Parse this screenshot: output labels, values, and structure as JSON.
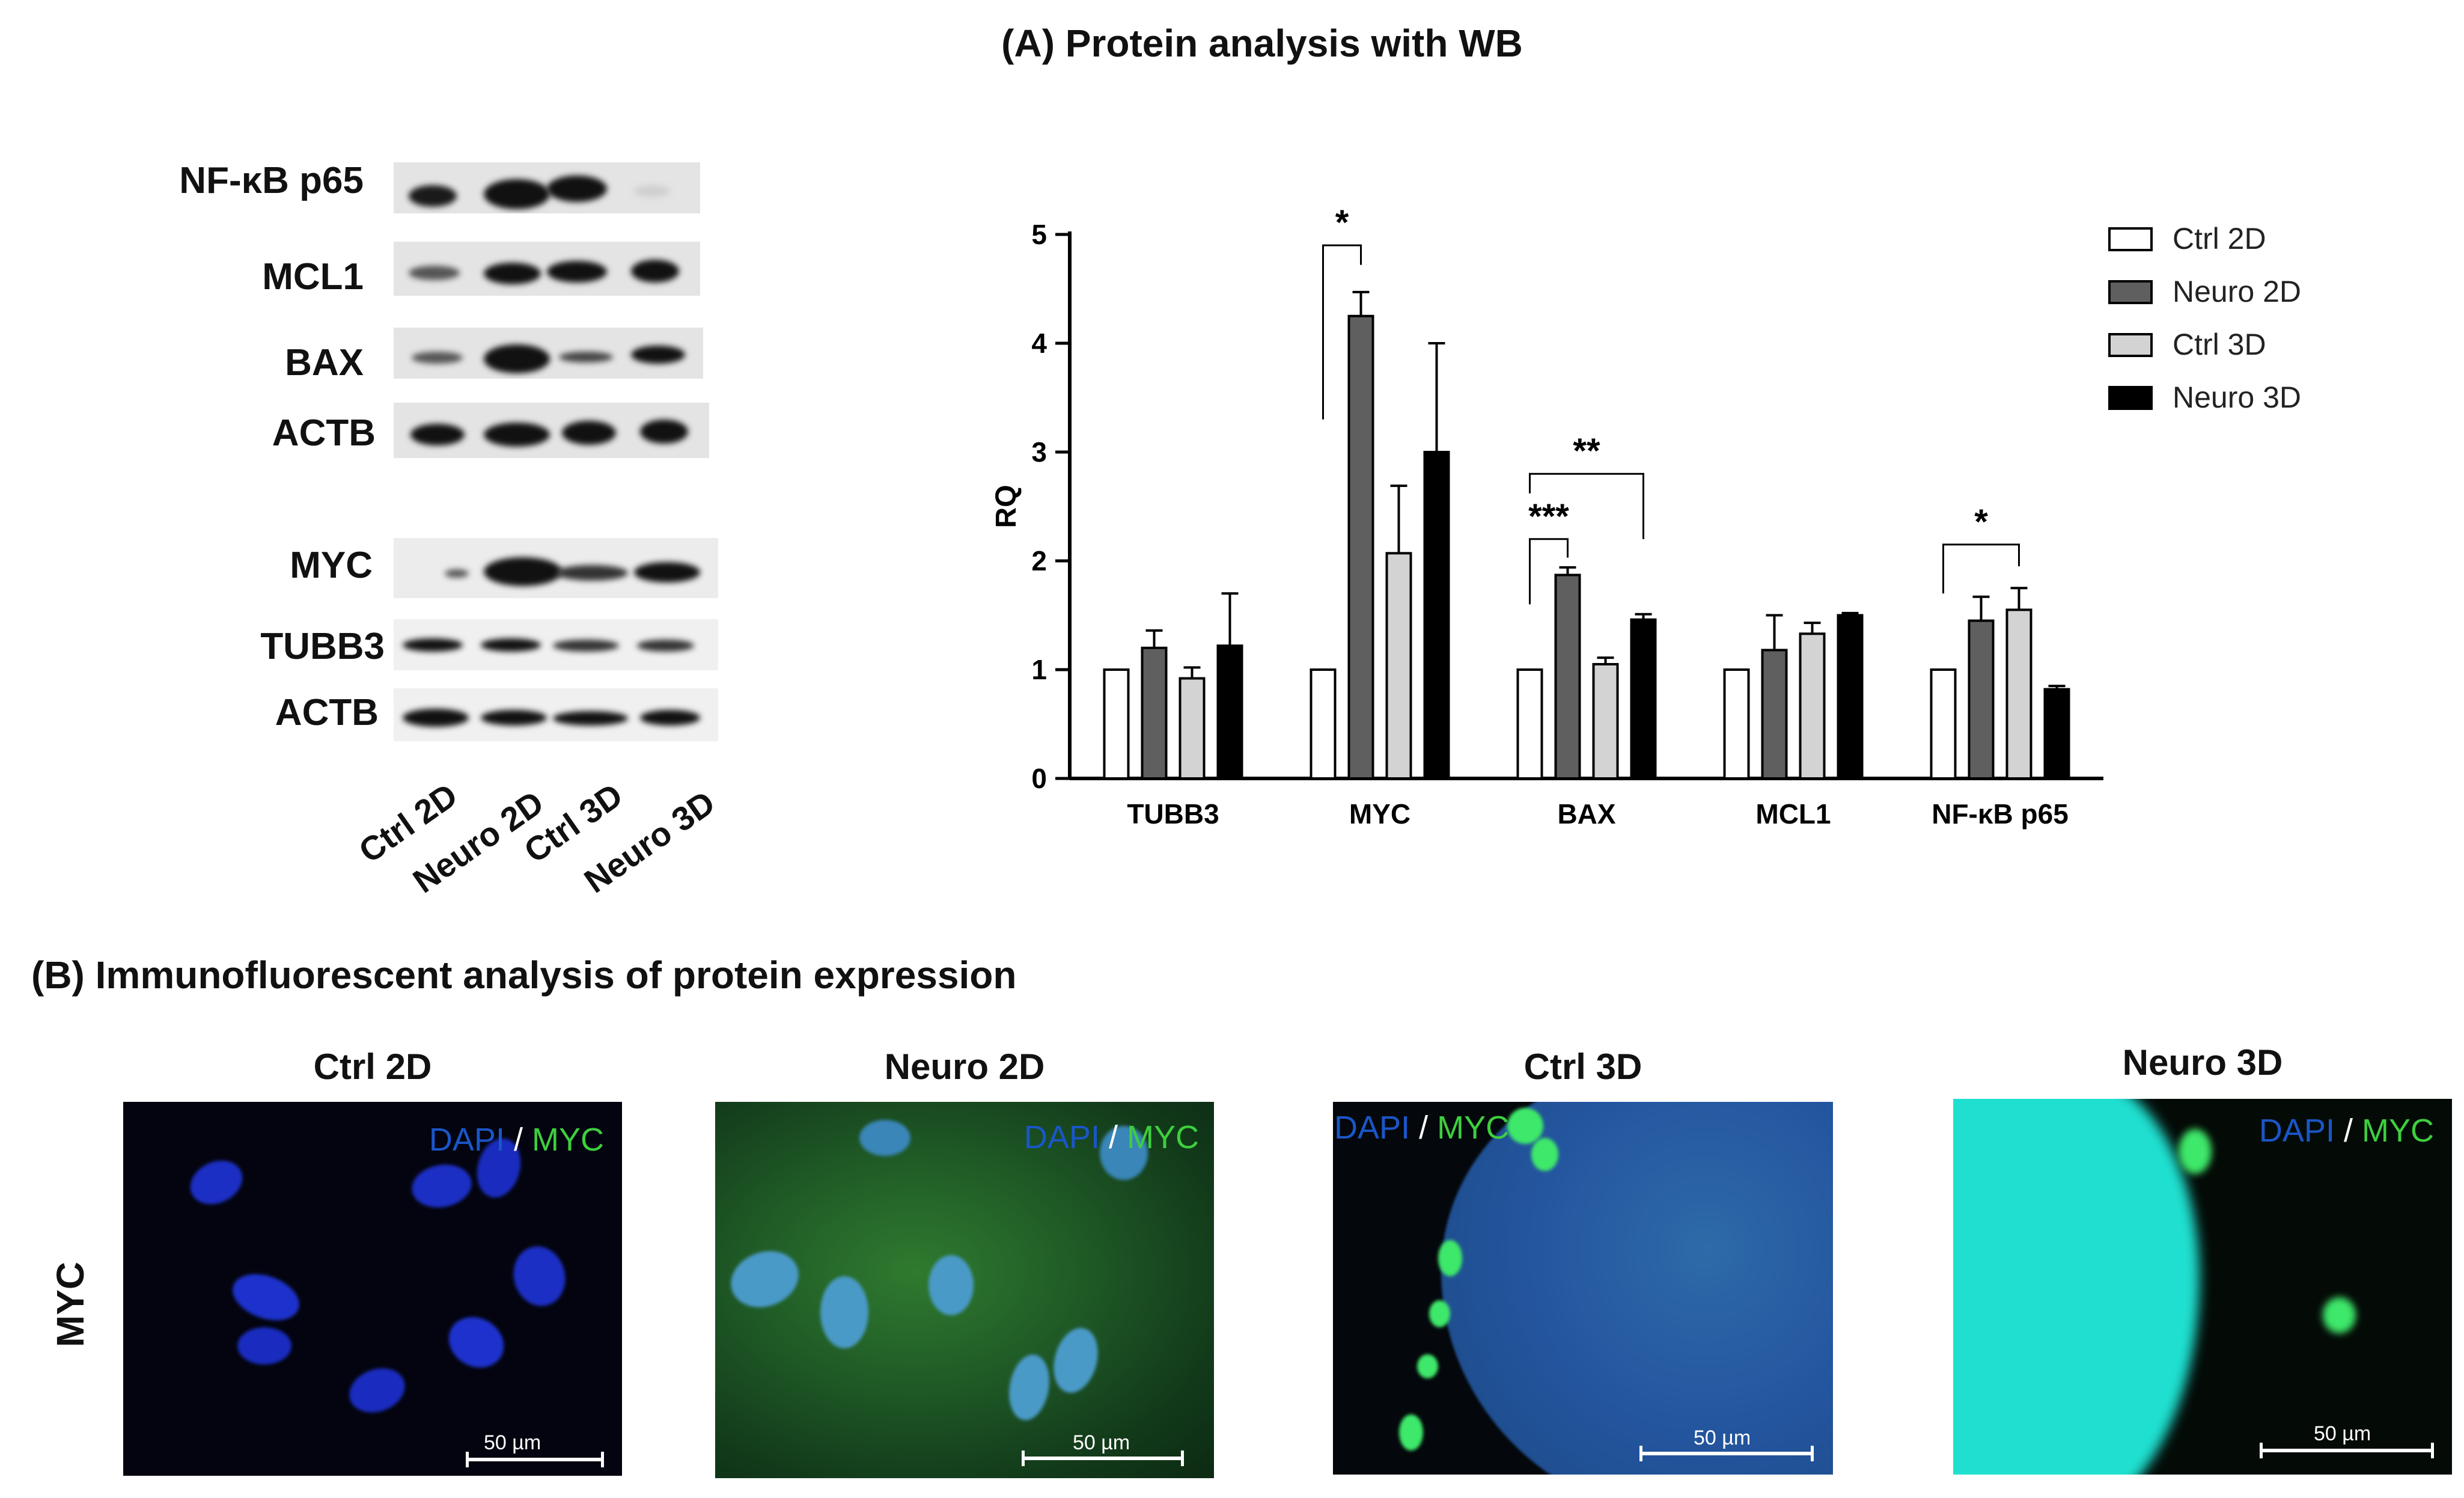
{
  "panel_a": {
    "title": "(A) Protein analysis with WB"
  },
  "panel_b": {
    "title": "(B) Immunofluorescent analysis of protein expression",
    "row_label": "MYC"
  },
  "western_blot": {
    "rows_top": [
      "NF-κB p65",
      "MCL1",
      "BAX",
      "ACTB"
    ],
    "rows_bottom": [
      "MYC",
      "TUBB3",
      "ACTB"
    ],
    "lanes": [
      "Ctrl 2D",
      "Neuro 2D",
      "Ctrl 3D",
      "Neuro 3D"
    ]
  },
  "chart_data": {
    "type": "bar",
    "categories": [
      "TUBB3",
      "MYC",
      "BAX",
      "MCL1",
      "NF-κB p65"
    ],
    "ylabel": "RQ",
    "xlabel": "",
    "ylim": [
      0,
      5
    ],
    "yticks": [
      0,
      1,
      2,
      3,
      4,
      5
    ],
    "legend_position": "top-right",
    "series": [
      {
        "name": "Ctrl 2D",
        "color": "#ffffff",
        "values": [
          1.0,
          1.0,
          1.0,
          1.0,
          1.0
        ],
        "errors": [
          0,
          0,
          0,
          0,
          0
        ]
      },
      {
        "name": "Neuro 2D",
        "color": "#5f5f5f",
        "values": [
          1.2,
          4.25,
          1.87,
          1.18,
          1.45
        ],
        "errors": [
          0.16,
          0.22,
          0.07,
          0.32,
          0.22
        ]
      },
      {
        "name": "Ctrl 3D",
        "color": "#d3d3d3",
        "values": [
          0.92,
          2.07,
          1.05,
          1.33,
          1.55
        ],
        "errors": [
          0.1,
          0.62,
          0.06,
          0.1,
          0.2
        ]
      },
      {
        "name": "Neuro 3D",
        "color": "#000000",
        "values": [
          1.22,
          3.0,
          1.46,
          1.5,
          0.82
        ],
        "errors": [
          0.48,
          1.0,
          0.05,
          0.02,
          0.03
        ]
      }
    ],
    "significance": [
      {
        "category": "MYC",
        "from": 0,
        "to": 1,
        "label": "*",
        "y": 4.9,
        "left_drop": 3.3,
        "right_drop": 4.72
      },
      {
        "category": "BAX",
        "from": 0,
        "to": 1,
        "label": "***",
        "y": 2.2,
        "left_drop": 1.6,
        "right_drop": 2.03
      },
      {
        "category": "BAX",
        "from": 0,
        "to": 3,
        "label": "**",
        "y": 2.8,
        "left_drop": 2.62,
        "right_drop": 2.2
      },
      {
        "category": "NF-κB p65",
        "from": 0,
        "to": 2,
        "label": "*",
        "y": 2.15,
        "left_drop": 1.7,
        "right_drop": 1.95
      }
    ]
  },
  "if_panels": [
    {
      "title": "Ctrl 2D",
      "dapi": "DAPI",
      "sep": "/",
      "myc": "MYC",
      "scale": "50 µm"
    },
    {
      "title": "Neuro 2D",
      "dapi": "DAPI",
      "sep": "/",
      "myc": "MYC",
      "scale": "50 µm"
    },
    {
      "title": "Ctrl 3D",
      "dapi": "DAPI",
      "sep": "/",
      "myc": "MYC",
      "scale": "50 µm"
    },
    {
      "title": "Neuro 3D",
      "dapi": "DAPI",
      "sep": "/",
      "myc": "MYC",
      "scale": "50 µm"
    }
  ],
  "colors": {
    "dapi": "#1a56c8",
    "myc": "#3ecf3e"
  }
}
